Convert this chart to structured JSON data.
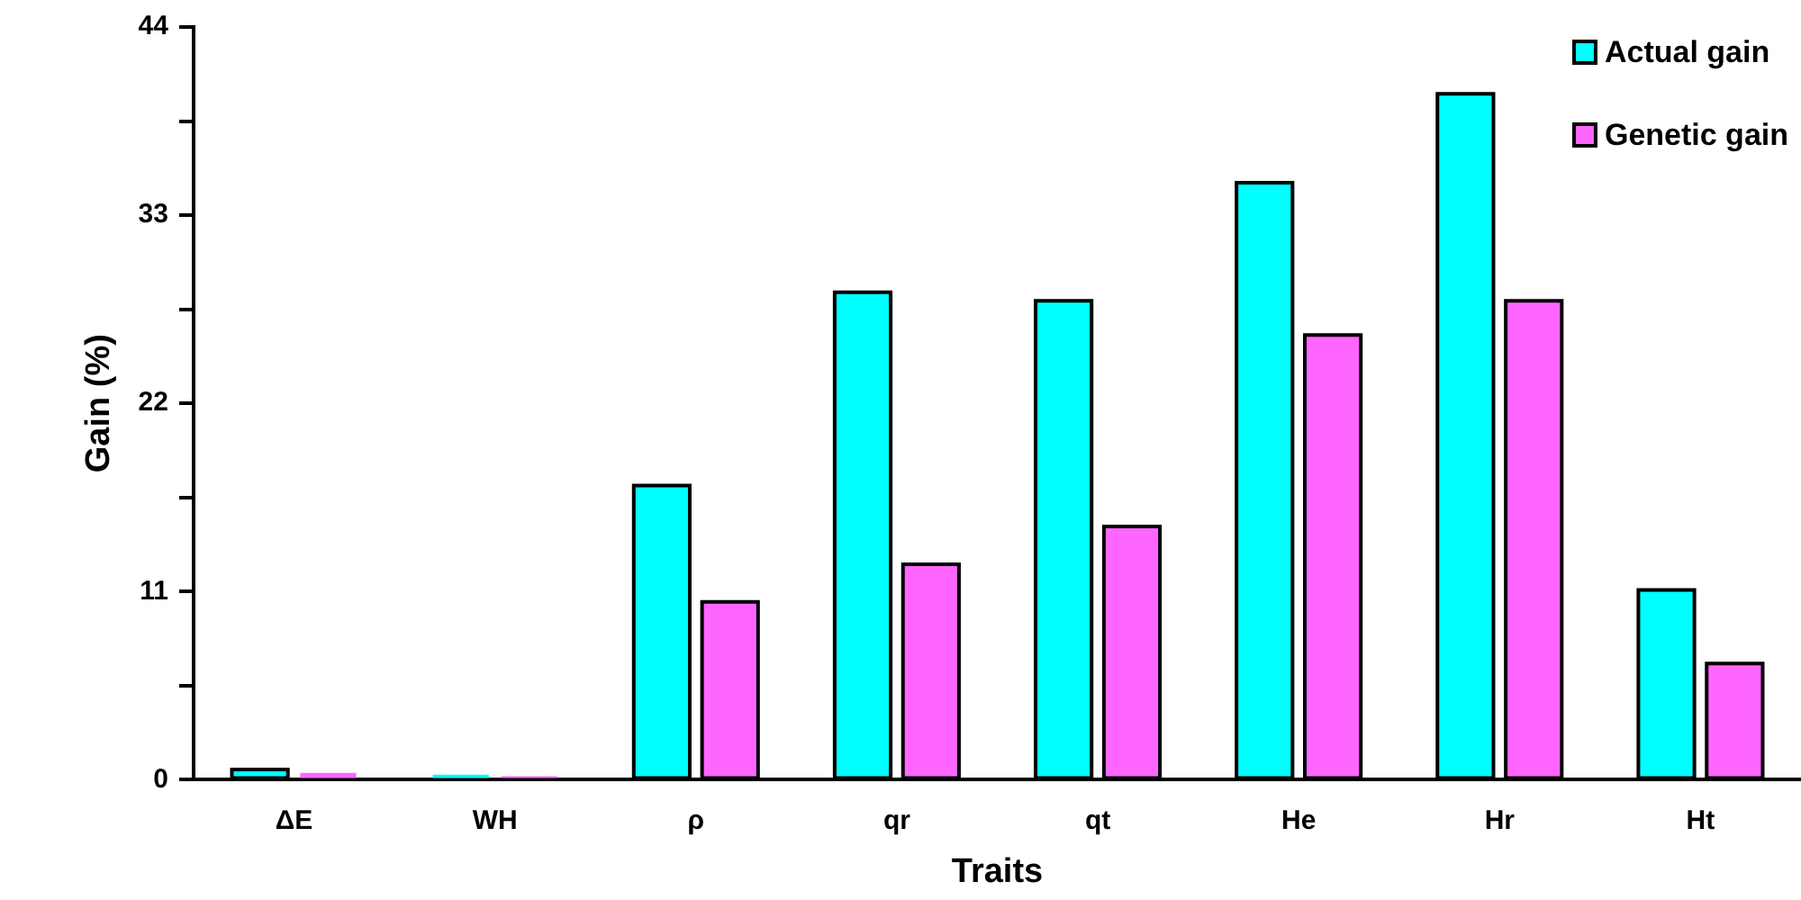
{
  "chart_data": {
    "type": "bar",
    "xlabel": "Traits",
    "ylabel": "Gain (%)",
    "categories": [
      "ΔE",
      "WH",
      "ρ",
      "qr",
      "qt",
      "He",
      "Hr",
      "Ht"
    ],
    "series": [
      {
        "name": "Actual gain",
        "color": "#00ffff",
        "values": [
          0.6,
          0.3,
          17.2,
          28.5,
          28.0,
          34.9,
          40.1,
          11.1
        ]
      },
      {
        "name": "Genetic gain",
        "color": "#ff66ff",
        "values": [
          0.4,
          0.2,
          10.4,
          12.6,
          14.8,
          26.0,
          28.0,
          6.8
        ]
      }
    ],
    "ylim": [
      0,
      44
    ],
    "yticks": [
      0,
      {
        "value": 5.5,
        "label": null
      },
      11,
      {
        "value": 16.5,
        "label": null
      },
      22,
      {
        "value": 27.5,
        "label": null
      },
      33,
      {
        "value": 38.5,
        "label": null
      },
      44
    ],
    "grid": false,
    "legend": "top right"
  }
}
